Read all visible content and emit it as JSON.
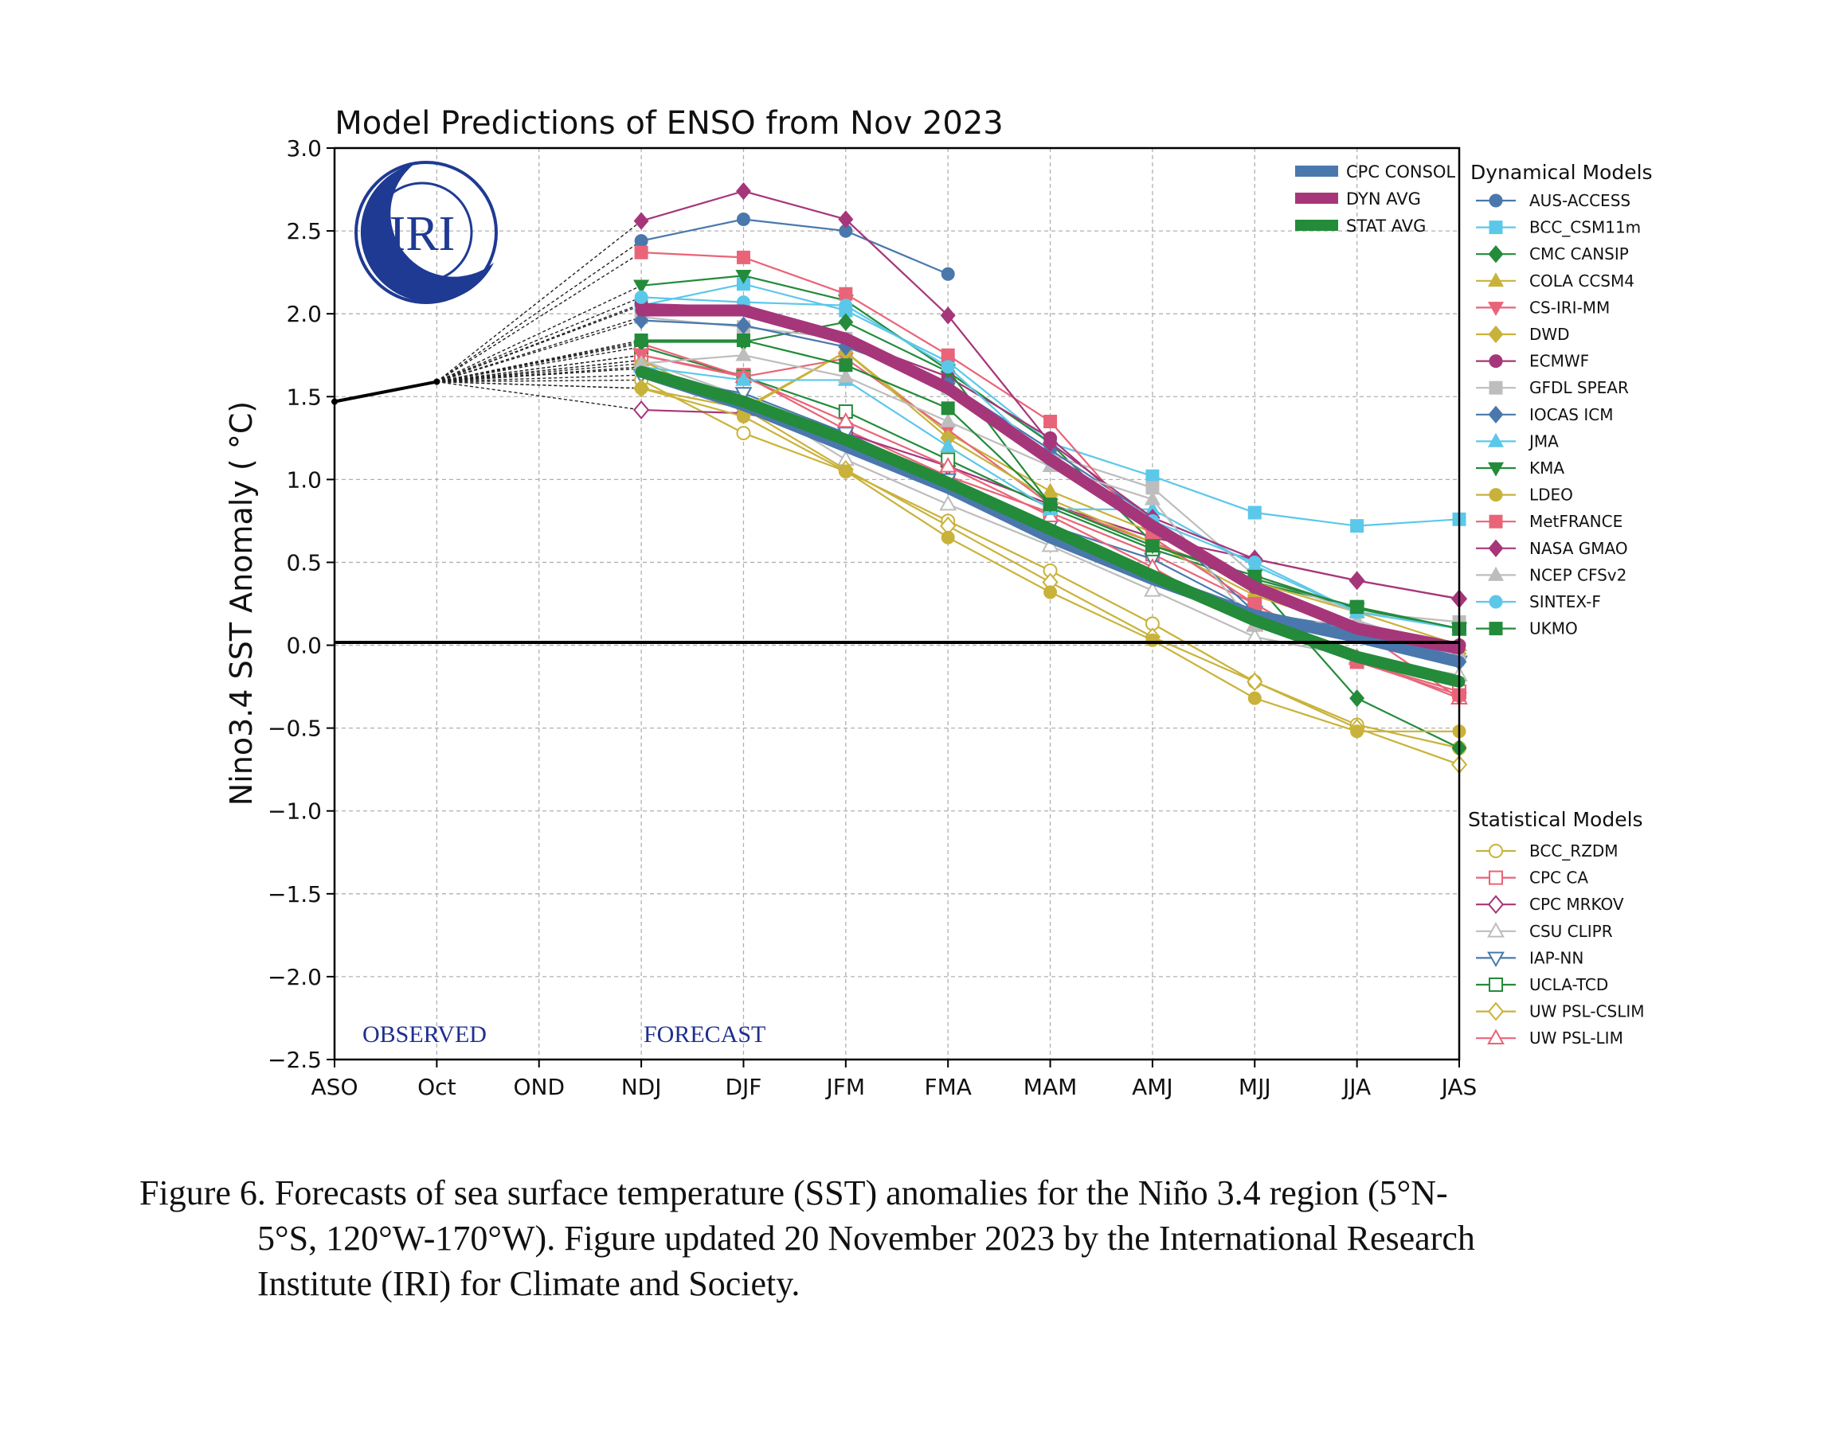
{
  "figure": {
    "caption_lines": [
      "Figure 6. Forecasts of sea surface temperature (SST) anomalies for the Niño 3.4 region (5°N-",
      "5°S, 120°W-170°W). Figure updated 20 November 2023 by the International Research",
      "Institute (IRI) for Climate and Society."
    ]
  },
  "chart_data": {
    "type": "line",
    "title": "Model Predictions of ENSO from Nov 2023",
    "xlabel": "",
    "ylabel": "Nino3.4 SST Anomaly ( °C)",
    "categories": [
      "ASO",
      "Oct",
      "OND",
      "NDJ",
      "DJF",
      "JFM",
      "FMA",
      "MAM",
      "AMJ",
      "MJJ",
      "JJA",
      "JAS"
    ],
    "ylim": [
      -2.5,
      3.0
    ],
    "yticks": [
      "3.0",
      "2.5",
      "2.0",
      "1.5",
      "1.0",
      "0.5",
      "0.0",
      "−0.5",
      "−1.0",
      "−1.5",
      "−2.0",
      "−2.5"
    ],
    "grid": true,
    "logo_text": "IRI",
    "annotations": [
      "OBSERVED",
      "FORECAST"
    ],
    "observed": {
      "x": [
        "ASO",
        "Oct"
      ],
      "values": [
        1.47,
        1.59
      ],
      "color": "#000000"
    },
    "dynamical_header": "Dynamical Models",
    "statistical_header": "Statistical Models",
    "consensus": [
      {
        "name": "CPC CONSOL",
        "color": "#4a78ac",
        "values": [
          1.65,
          1.45,
          1.2,
          0.95,
          0.65,
          0.4,
          0.18,
          0.05,
          -0.1
        ]
      },
      {
        "name": "DYN AVG",
        "color": "#a6367a",
        "values": [
          2.02,
          2.02,
          1.85,
          1.55,
          1.12,
          0.72,
          0.35,
          0.1,
          -0.02
        ]
      },
      {
        "name": "STAT AVG",
        "color": "#238b3a",
        "values": [
          1.65,
          1.47,
          1.24,
          0.98,
          0.7,
          0.42,
          0.15,
          -0.07,
          -0.22
        ]
      }
    ],
    "dynamical": [
      {
        "name": "AUS-ACCESS",
        "color": "#4a78ac",
        "marker": "circle",
        "values": [
          2.44,
          2.57,
          2.5,
          2.24,
          null,
          null,
          null,
          null,
          null
        ]
      },
      {
        "name": "BCC_CSM11m",
        "color": "#5bc8ea",
        "marker": "square",
        "values": [
          2.05,
          2.18,
          2.02,
          1.71,
          1.22,
          1.02,
          0.8,
          0.72,
          0.76
        ]
      },
      {
        "name": "CMC CANSIP",
        "color": "#238b3a",
        "marker": "diamond",
        "values": [
          1.83,
          1.83,
          1.95,
          1.65,
          1.22,
          0.62,
          0.38,
          -0.32,
          -0.62
        ]
      },
      {
        "name": "COLA CCSM4",
        "color": "#c9b23a",
        "marker": "triangle-up",
        "values": [
          1.72,
          1.42,
          1.77,
          1.28,
          0.93,
          0.68,
          0.38,
          0.2,
          0.0
        ]
      },
      {
        "name": "CS-IRI-MM",
        "color": "#e96478",
        "marker": "triangle-down",
        "values": [
          1.75,
          1.62,
          1.73,
          1.3,
          0.85,
          0.62,
          0.38,
          0.1,
          -0.32
        ]
      },
      {
        "name": "DWD",
        "color": "#c9b23a",
        "marker": "diamond",
        "values": [
          1.67,
          1.43,
          1.77,
          1.25,
          0.88,
          0.62,
          0.3,
          0.1,
          -0.05
        ]
      },
      {
        "name": "ECMWF",
        "color": "#a6367a",
        "marker": "circle",
        "values": [
          2.06,
          2.04,
          1.85,
          1.62,
          1.25,
          0.72,
          0.35,
          0.12,
          0.0
        ]
      },
      {
        "name": "GFDL SPEAR",
        "color": "#bdbdbd",
        "marker": "square",
        "values": [
          1.98,
          1.92,
          1.85,
          1.55,
          1.15,
          0.95,
          0.42,
          0.2,
          0.14
        ]
      },
      {
        "name": "IOCAS ICM",
        "color": "#4a78ac",
        "marker": "diamond",
        "values": [
          1.96,
          1.93,
          1.8,
          1.58,
          1.18,
          0.77,
          0.2,
          0.1,
          -0.1
        ]
      },
      {
        "name": "JMA",
        "color": "#5bc8ea",
        "marker": "triangle-up",
        "values": [
          1.68,
          1.6,
          1.6,
          1.2,
          0.82,
          0.82,
          0.48,
          0.2,
          0.1
        ]
      },
      {
        "name": "KMA",
        "color": "#238b3a",
        "marker": "triangle-down",
        "values": [
          2.17,
          2.23,
          2.08,
          1.66,
          0.85,
          0.6,
          0.42,
          0.22,
          0.1
        ]
      },
      {
        "name": "LDEO",
        "color": "#c9b23a",
        "marker": "circle",
        "values": [
          1.55,
          1.38,
          1.05,
          0.65,
          0.32,
          0.03,
          -0.32,
          -0.52,
          -0.52
        ]
      },
      {
        "name": "MetFRANCE",
        "color": "#e96478",
        "marker": "square",
        "values": [
          2.37,
          2.34,
          2.12,
          1.75,
          1.35,
          0.65,
          0.25,
          -0.1,
          -0.3
        ]
      },
      {
        "name": "NASA GMAO",
        "color": "#a6367a",
        "marker": "diamond",
        "values": [
          2.56,
          2.74,
          2.57,
          1.99,
          1.22,
          0.77,
          0.52,
          0.39,
          0.28
        ]
      },
      {
        "name": "NCEP CFSv2",
        "color": "#bdbdbd",
        "marker": "triangle-up",
        "values": [
          1.7,
          1.75,
          1.62,
          1.35,
          1.08,
          0.88,
          0.12,
          0.15,
          -0.05
        ]
      },
      {
        "name": "SINTEX-F",
        "color": "#5bc8ea",
        "marker": "circle",
        "values": [
          2.1,
          2.07,
          2.05,
          1.68,
          1.12,
          0.75,
          0.5,
          0.2,
          0.1
        ]
      },
      {
        "name": "UKMO",
        "color": "#238b3a",
        "marker": "square",
        "values": [
          1.84,
          1.84,
          1.69,
          1.43,
          0.85,
          0.6,
          0.4,
          0.23,
          0.1
        ]
      }
    ],
    "statistical": [
      {
        "name": "BCC_RZDM",
        "color": "#c9b23a",
        "marker": "circle",
        "values": [
          1.6,
          1.28,
          1.05,
          0.75,
          0.45,
          0.13,
          -0.22,
          -0.48,
          -0.62
        ]
      },
      {
        "name": "CPC CA",
        "color": "#e96478",
        "marker": "square",
        "values": [
          1.75,
          1.63,
          1.3,
          1.02,
          0.8,
          0.55,
          0.25,
          -0.1,
          -0.28
        ]
      },
      {
        "name": "CPC MRKOV",
        "color": "#a6367a",
        "marker": "diamond",
        "values": [
          1.42,
          1.4,
          1.28,
          1.08,
          0.85,
          0.65,
          0.52,
          0.39,
          0.28
        ]
      },
      {
        "name": "CSU CLIPR",
        "color": "#bdbdbd",
        "marker": "triangle-up",
        "values": [
          1.72,
          1.5,
          1.12,
          0.85,
          0.6,
          0.33,
          0.05,
          -0.07,
          -0.18
        ]
      },
      {
        "name": "IAP-NN",
        "color": "#4a78ac",
        "marker": "triangle-down",
        "values": [
          1.63,
          1.52,
          1.28,
          1.0,
          0.72,
          0.52,
          0.2,
          0.08,
          -0.1
        ]
      },
      {
        "name": "UCLA-TCD",
        "color": "#238b3a",
        "marker": "square",
        "values": [
          1.8,
          1.62,
          1.41,
          1.12,
          0.83,
          0.58,
          0.38,
          0.23,
          0.1
        ]
      },
      {
        "name": "UW PSL-CSLIM",
        "color": "#c9b23a",
        "marker": "diamond",
        "values": [
          1.55,
          1.43,
          1.06,
          0.72,
          0.38,
          0.05,
          -0.22,
          -0.5,
          -0.72
        ]
      },
      {
        "name": "UW PSL-LIM",
        "color": "#e96478",
        "marker": "triangle-up",
        "values": [
          1.82,
          1.62,
          1.35,
          1.08,
          0.78,
          0.47,
          0.12,
          -0.08,
          -0.32
        ]
      }
    ]
  }
}
